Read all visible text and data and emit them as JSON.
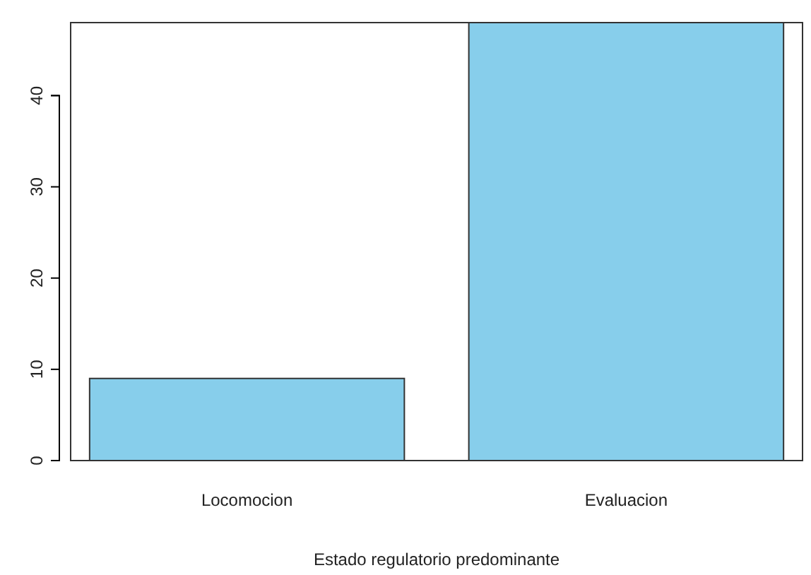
{
  "chart_data": {
    "type": "bar",
    "xlabel": "Estado regulatorio predominante",
    "categories": [
      "Locomocion",
      "Evaluacion"
    ],
    "values": [
      9,
      48
    ],
    "color": "#87ceeb",
    "ylim": [
      0,
      48
    ],
    "yticks": [
      0,
      10,
      20,
      30,
      40
    ],
    "grid": false
  }
}
